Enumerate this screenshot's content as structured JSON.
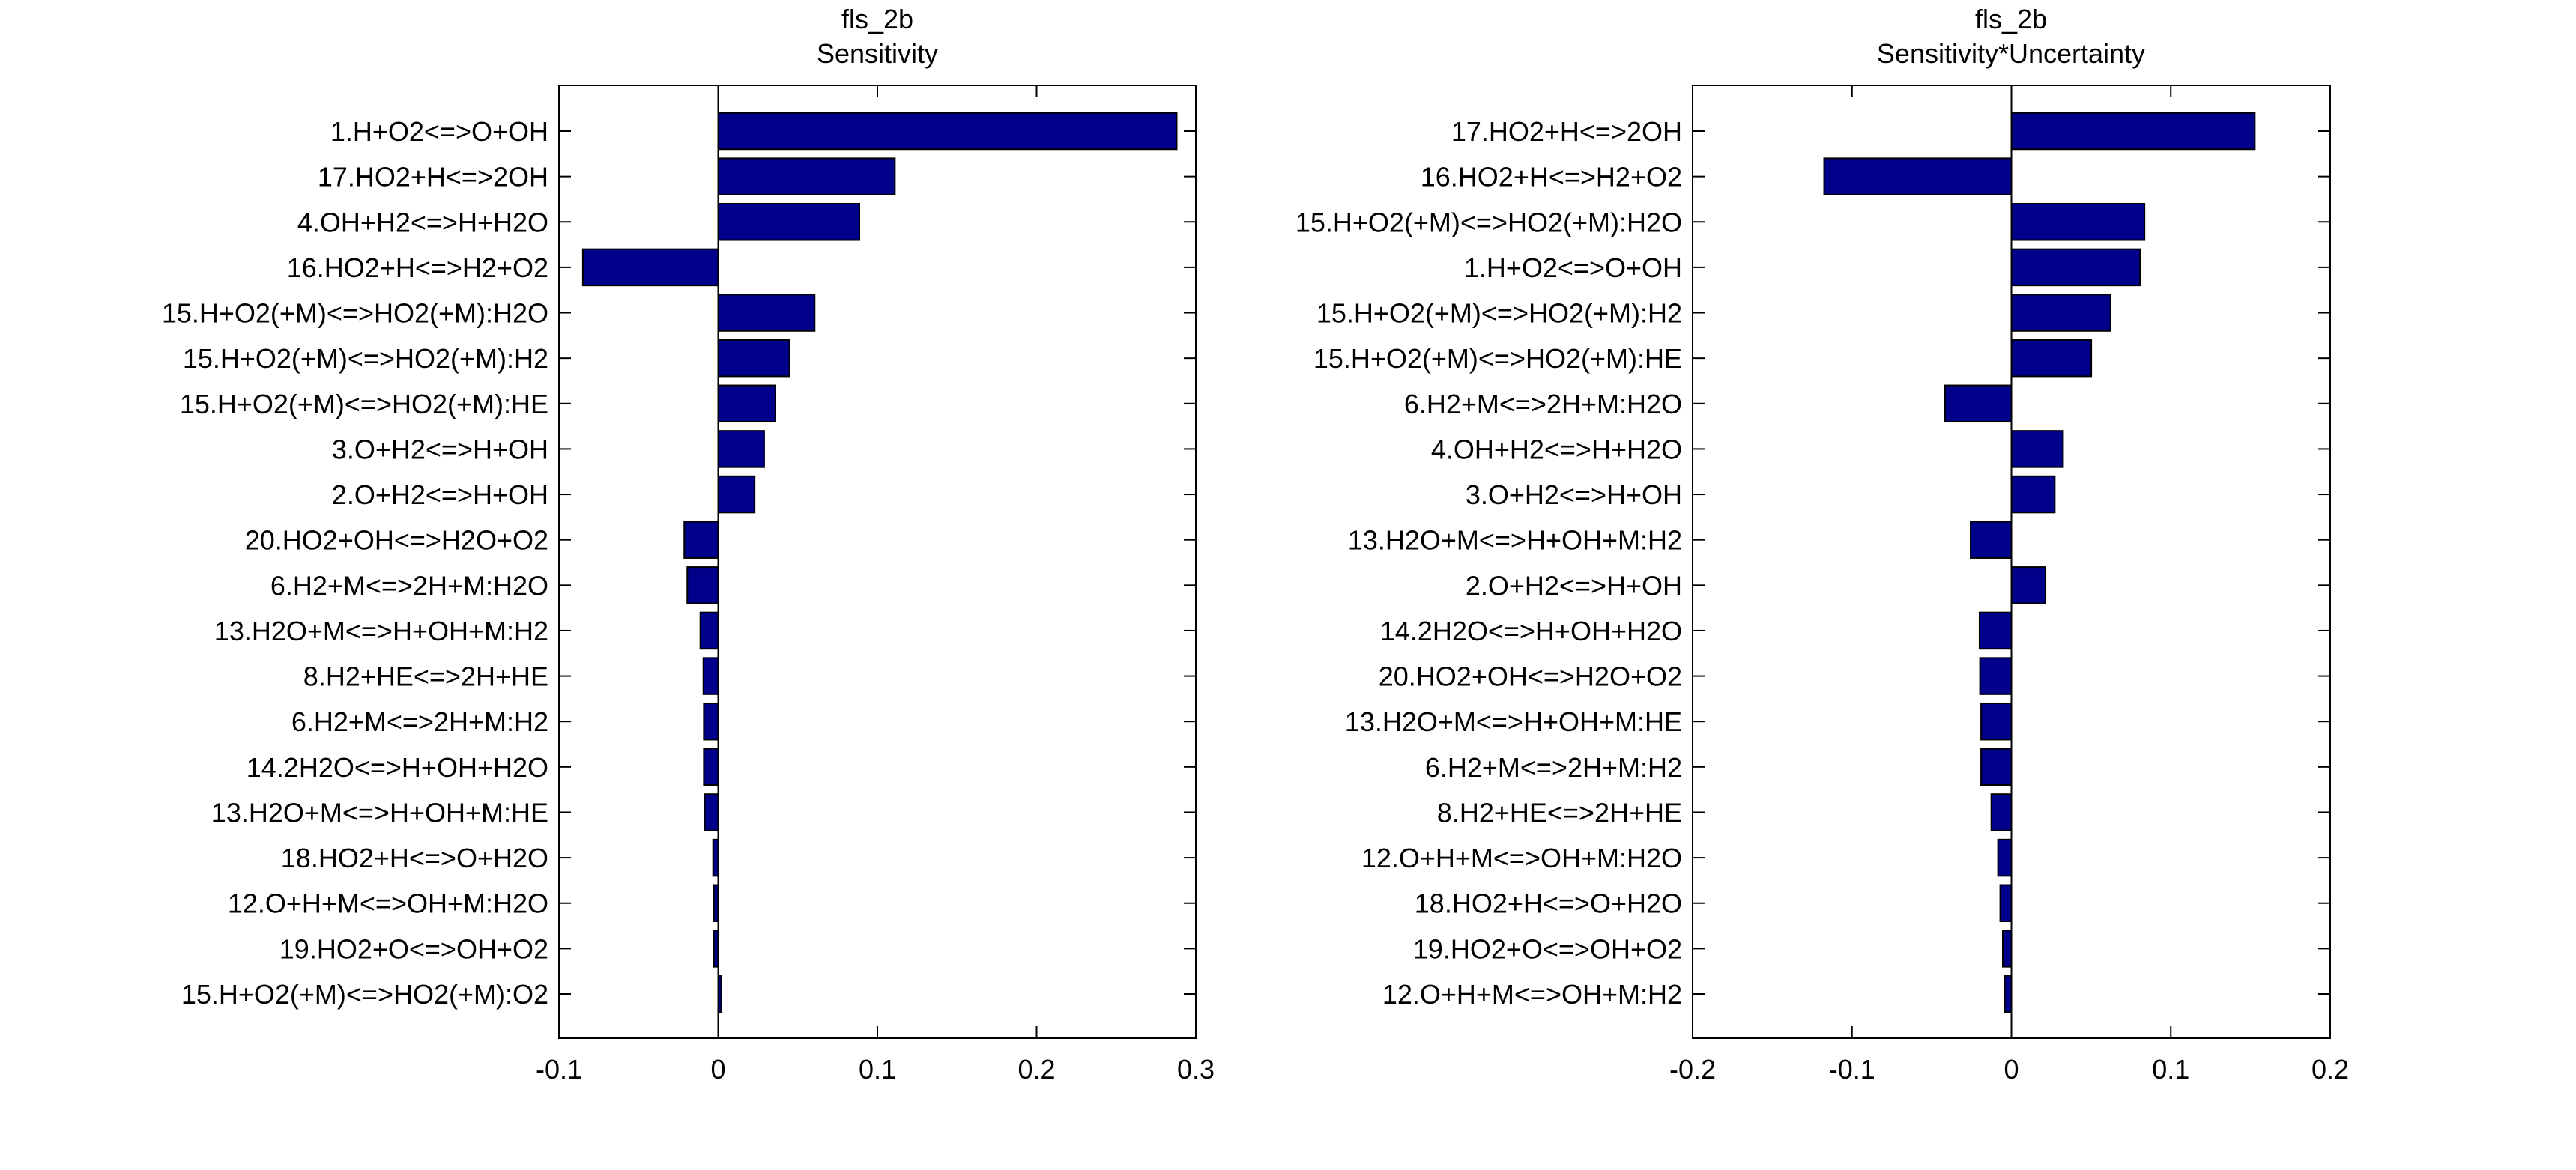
{
  "colors": {
    "bar": "#00008b",
    "axis": "#000000",
    "background": "#ffffff"
  },
  "chart_data": [
    {
      "type": "bar",
      "orientation": "horizontal",
      "title": "fls_2b",
      "subtitle": "Sensitivity",
      "xlim": [
        -0.1,
        0.3
      ],
      "xticks": [
        -0.1,
        0,
        0.1,
        0.2,
        0.3
      ],
      "xtick_labels": [
        "-0.1",
        "0",
        "0.1",
        "0.2",
        "0.3"
      ],
      "grid": false,
      "categories": [
        "1.H+O2<=>O+OH",
        "17.HO2+H<=>2OH",
        "4.OH+H2<=>H+H2O",
        "16.HO2+H<=>H2+O2",
        "15.H+O2(+M)<=>HO2(+M):H2O",
        "15.H+O2(+M)<=>HO2(+M):H2",
        "15.H+O2(+M)<=>HO2(+M):HE",
        "3.O+H2<=>H+OH",
        "2.O+H2<=>H+OH",
        "20.HO2+OH<=>H2O+O2",
        "6.H2+M<=>2H+M:H2O",
        "13.H2O+M<=>H+OH+M:H2",
        "8.H2+HE<=>2H+HE",
        "6.H2+M<=>2H+M:H2",
        "14.2H2O<=>H+OH+H2O",
        "13.H2O+M<=>H+OH+M:HE",
        "18.HO2+H<=>O+H2O",
        "12.O+H+M<=>OH+M:H2O",
        "19.HO2+O<=>OH+O2",
        "15.H+O2(+M)<=>HO2(+M):O2"
      ],
      "values": [
        0.288,
        0.111,
        0.0887,
        -0.085,
        0.0606,
        0.0448,
        0.036,
        0.0289,
        0.0229,
        -0.0213,
        -0.0194,
        -0.0112,
        -0.0093,
        -0.009,
        -0.009,
        -0.0085,
        -0.0032,
        -0.0027,
        -0.0027,
        0.002
      ]
    },
    {
      "type": "bar",
      "orientation": "horizontal",
      "title": "fls_2b",
      "subtitle": "Sensitivity*Uncertainty",
      "xlim": [
        -0.2,
        0.2
      ],
      "xticks": [
        -0.2,
        -0.1,
        0,
        0.1,
        0.2
      ],
      "xtick_labels": [
        "-0.2",
        "-0.1",
        "0",
        "0.1",
        "0.2"
      ],
      "grid": false,
      "categories": [
        "17.HO2+H<=>2OH",
        "16.HO2+H<=>H2+O2",
        "15.H+O2(+M)<=>HO2(+M):H2O",
        "1.H+O2<=>O+OH",
        "15.H+O2(+M)<=>HO2(+M):H2",
        "15.H+O2(+M)<=>HO2(+M):HE",
        "6.H2+M<=>2H+M:H2O",
        "4.OH+H2<=>H+H2O",
        "3.O+H2<=>H+OH",
        "13.H2O+M<=>H+OH+M:H2",
        "2.O+H2<=>H+OH",
        "14.2H2O<=>H+OH+H2O",
        "20.HO2+OH<=>H2O+O2",
        "13.H2O+M<=>H+OH+M:HE",
        "6.H2+M<=>2H+M:H2",
        "8.H2+HE<=>2H+HE",
        "12.O+H+M<=>OH+M:H2O",
        "18.HO2+H<=>O+H2O",
        "19.HO2+O<=>OH+O2",
        "12.O+H+M<=>OH+M:H2"
      ],
      "values": [
        0.1527,
        -0.1175,
        0.0835,
        0.0807,
        0.0622,
        0.0501,
        -0.0416,
        0.0324,
        0.0272,
        -0.0256,
        0.0214,
        -0.02,
        -0.0197,
        -0.019,
        -0.019,
        -0.0126,
        -0.0084,
        -0.007,
        -0.0054,
        -0.0042
      ]
    }
  ]
}
